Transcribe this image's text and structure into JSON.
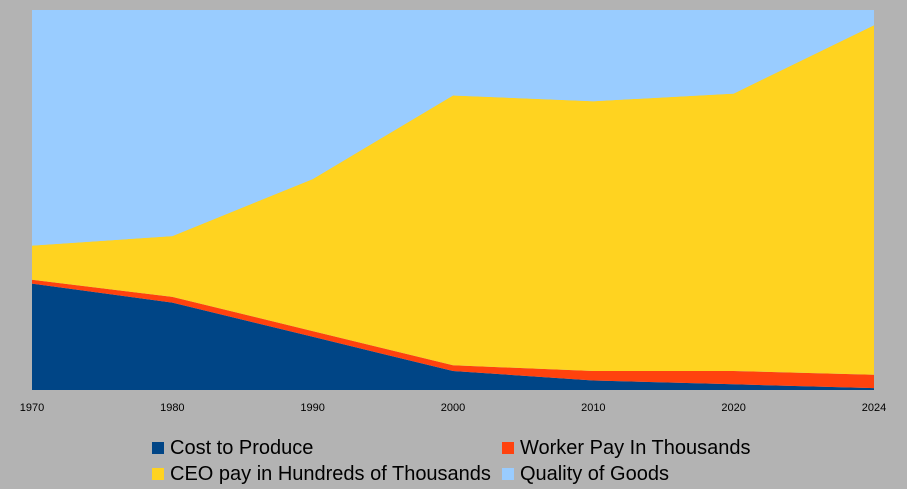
{
  "chart_data": {
    "type": "area",
    "stacked": true,
    "x": [
      "1970",
      "1980",
      "1990",
      "2000",
      "2010",
      "2020",
      "2024"
    ],
    "ylim": [
      0,
      100
    ],
    "grid": false,
    "legend_position": "bottom",
    "series": [
      {
        "name": "Cost to Produce",
        "color": "#004586",
        "values": [
          28,
          23,
          14,
          5,
          2.5,
          1.5,
          0.5
        ]
      },
      {
        "name": "Worker Pay In Thousands",
        "color": "#ff420e",
        "values": [
          1,
          1.5,
          1.5,
          1.5,
          2.5,
          3.5,
          3.5
        ]
      },
      {
        "name": "CEO pay in Hundreds of Thousands",
        "color": "#ffd320",
        "values": [
          9,
          16,
          40,
          71,
          71,
          73,
          92
        ]
      },
      {
        "name": "Quality of Goods",
        "color": "#99ccff",
        "values": [
          62,
          59.5,
          44.5,
          22.5,
          24,
          22,
          4
        ]
      }
    ]
  }
}
